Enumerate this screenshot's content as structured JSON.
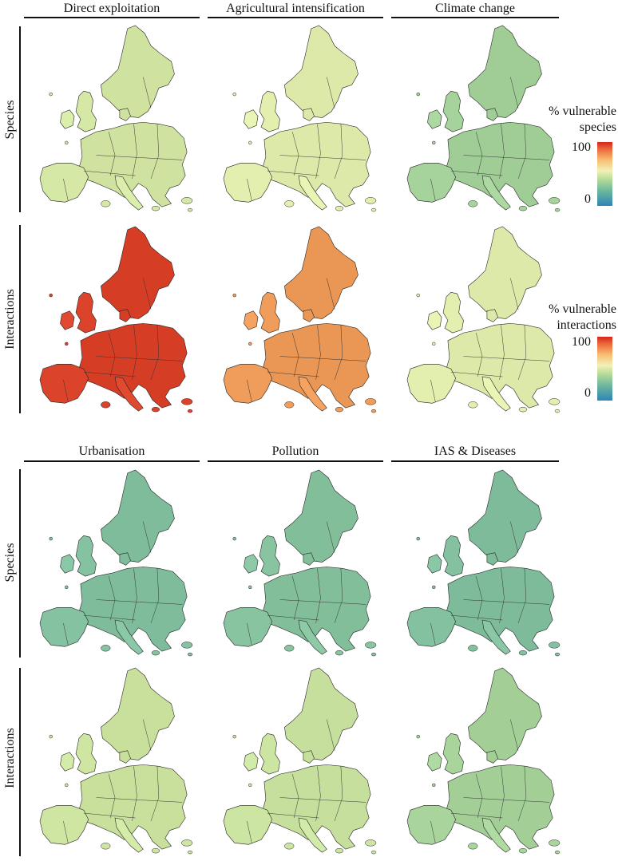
{
  "figure": {
    "columns_top": [
      "Direct exploitation",
      "Agricultural intensification",
      "Climate change"
    ],
    "columns_bottom": [
      "Urbanisation",
      "Pollution",
      "IAS & Diseases"
    ],
    "row_labels": {
      "top_species": "Species",
      "top_interactions": "Interactions",
      "bottom_species": "Species",
      "bottom_interactions": "Interactions"
    },
    "legend_species": {
      "title_line1": "% vulnerable",
      "title_line2": "species",
      "max_label": "100",
      "min_label": "0"
    },
    "legend_interactions": {
      "title_line1": "% vulnerable",
      "title_line2": "interactions",
      "max_label": "100",
      "min_label": "0"
    }
  },
  "maps": [
    {
      "name": "direct-exploitation-species",
      "driver": "Direct exploitation",
      "level": "Species",
      "fill": "#d5e8a5",
      "vulnerability_pct": 40
    },
    {
      "name": "agricultural-intensification-species",
      "driver": "Agricultural intensification",
      "level": "Species",
      "fill": "#e3efae",
      "vulnerability_pct": 45
    },
    {
      "name": "climate-change-species",
      "driver": "Climate change",
      "level": "Species",
      "fill": "#a6d39c",
      "vulnerability_pct": 30
    },
    {
      "name": "direct-exploitation-interactions",
      "driver": "Direct exploitation",
      "level": "Interactions",
      "fill": "#dc432b",
      "vulnerability_pct": 92
    },
    {
      "name": "agricultural-intensification-interactions",
      "driver": "Agricultural intensification",
      "level": "Interactions",
      "fill": "#f09c5a",
      "vulnerability_pct": 75
    },
    {
      "name": "climate-change-interactions",
      "driver": "Climate change",
      "level": "Interactions",
      "fill": "#e3efae",
      "vulnerability_pct": 45
    },
    {
      "name": "urbanisation-species",
      "driver": "Urbanisation",
      "level": "Species",
      "fill": "#84c2a2",
      "vulnerability_pct": 22
    },
    {
      "name": "pollution-species",
      "driver": "Pollution",
      "level": "Species",
      "fill": "#88c4a0",
      "vulnerability_pct": 22
    },
    {
      "name": "ias-diseases-species",
      "driver": "IAS & Diseases",
      "level": "Species",
      "fill": "#84c1a1",
      "vulnerability_pct": 20
    },
    {
      "name": "urbanisation-interactions",
      "driver": "Urbanisation",
      "level": "Interactions",
      "fill": "#cfe6a2",
      "vulnerability_pct": 40
    },
    {
      "name": "pollution-interactions",
      "driver": "Pollution",
      "level": "Interactions",
      "fill": "#cce5a2",
      "vulnerability_pct": 38
    },
    {
      "name": "ias-diseases-interactions",
      "driver": "IAS & Diseases",
      "level": "Interactions",
      "fill": "#a9d59d",
      "vulnerability_pct": 30
    }
  ]
}
